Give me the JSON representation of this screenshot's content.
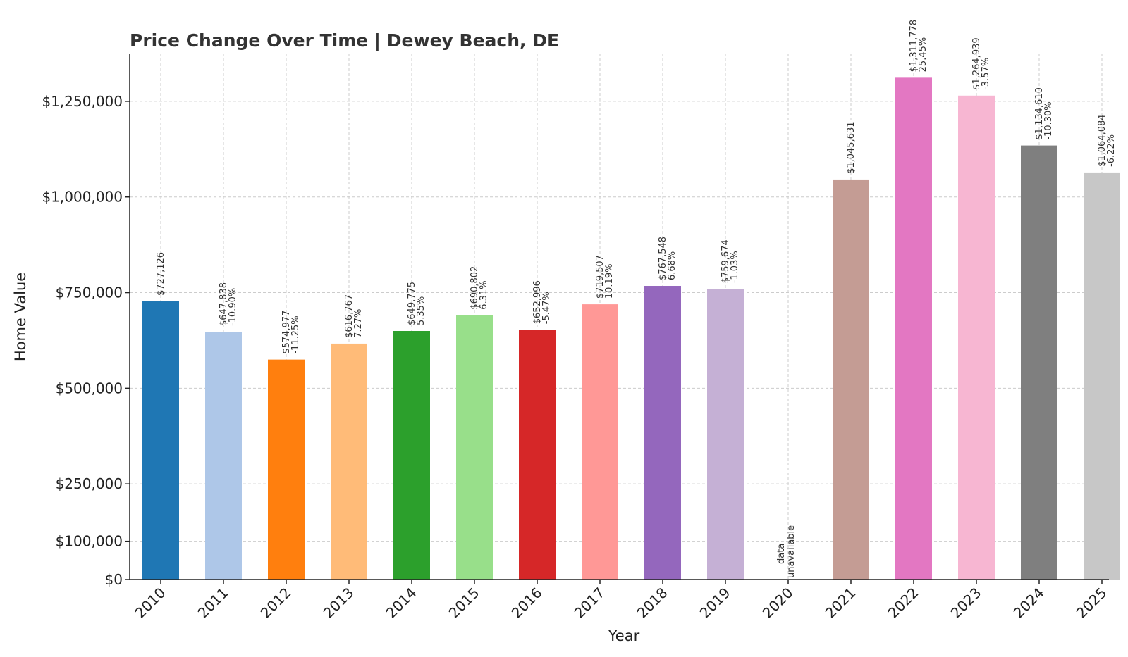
{
  "chart_data": {
    "type": "bar",
    "title": "Price Change Over Time | Dewey Beach, DE",
    "xlabel": "Year",
    "ylabel": "Home Value",
    "ylim": [
      0,
      1375000
    ],
    "yticks": [
      0,
      100000,
      250000,
      500000,
      750000,
      1000000,
      1250000
    ],
    "ytick_labels": [
      "$0",
      "$100,000",
      "$250,000",
      "$500,000",
      "$750,000",
      "$1,000,000",
      "$1,250,000"
    ],
    "grid": true,
    "categories": [
      "2010",
      "2011",
      "2012",
      "2013",
      "2014",
      "2015",
      "2016",
      "2017",
      "2018",
      "2019",
      "2020",
      "2021",
      "2022",
      "2023",
      "2024",
      "2025"
    ],
    "values": [
      727126,
      647838,
      574977,
      616767,
      649775,
      690802,
      652996,
      719507,
      767548,
      759674,
      null,
      1045631,
      1311778,
      1264939,
      1134610,
      1064084
    ],
    "value_labels": [
      "$727,126",
      "$647,838",
      "$574,977",
      "$616,767",
      "$649,775",
      "$690,802",
      "$652,996",
      "$719,507",
      "$767,548",
      "$759,674",
      "data",
      "$1,045,631",
      "$1,311,778",
      "$1,264,939",
      "$1,134,610",
      "$1,064,084"
    ],
    "change_labels": [
      "",
      "-10.90%",
      "-11.25%",
      "7.27%",
      "5.35%",
      "6.31%",
      "-5.47%",
      "10.19%",
      "6.68%",
      "-1.03%",
      "unavailable",
      "",
      "25.45%",
      "-3.57%",
      "-10.30%",
      "-6.22%"
    ],
    "colors": [
      "#1f77b4",
      "#aec7e8",
      "#ff7f0e",
      "#ffbb78",
      "#2ca02c",
      "#98df8a",
      "#d62728",
      "#ff9896",
      "#9467bd",
      "#c5b0d5",
      "#8c564b",
      "#c49c94",
      "#e377c2",
      "#f7b6d2",
      "#7f7f7f",
      "#c7c7c7"
    ]
  }
}
